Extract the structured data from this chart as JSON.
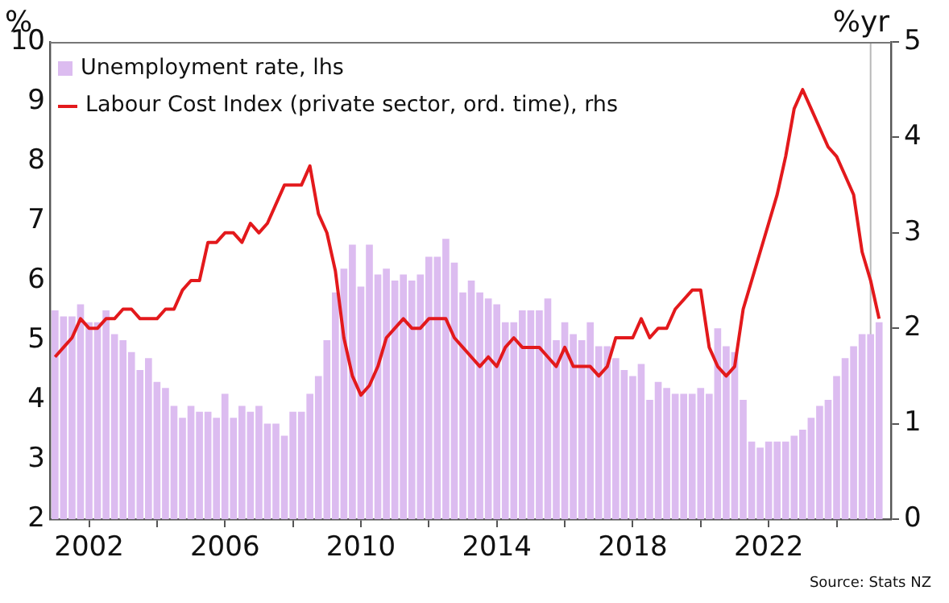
{
  "chart_data": {
    "type": "bar",
    "ylabel": "%",
    "y2label": "%yr",
    "annotations": [
      "Source: Stats NZ"
    ],
    "legend": "top left",
    "grid": false,
    "marker": "none",
    "x": [
      2001,
      2001.25,
      2001.5,
      2001.75,
      2002,
      2002.25,
      2002.5,
      2002.75,
      2003,
      2003.25,
      2003.5,
      2003.75,
      2004,
      2004.25,
      2004.5,
      2004.75,
      2005,
      2005.25,
      2005.5,
      2005.75,
      2006,
      2006.25,
      2006.5,
      2006.75,
      2007,
      2007.25,
      2007.5,
      2007.75,
      2008,
      2008.25,
      2008.5,
      2008.75,
      2009,
      2009.25,
      2009.5,
      2009.75,
      2010,
      2010.25,
      2010.5,
      2010.75,
      2011,
      2011.25,
      2011.5,
      2011.75,
      2012,
      2012.25,
      2012.5,
      2012.75,
      2013,
      2013.25,
      2013.5,
      2013.75,
      2014,
      2014.25,
      2014.5,
      2014.75,
      2015,
      2015.25,
      2015.5,
      2015.75,
      2016,
      2016.25,
      2016.5,
      2016.75,
      2017,
      2017.25,
      2017.5,
      2017.75,
      2018,
      2018.25,
      2018.5,
      2018.75,
      2019,
      2019.25,
      2019.5,
      2019.75,
      2020,
      2020.25,
      2020.5,
      2020.75,
      2021,
      2021.25,
      2021.5,
      2021.75,
      2022,
      2022.25,
      2022.5,
      2022.75,
      2023,
      2023.25,
      2023.5,
      2023.75,
      2024,
      2024.25,
      2024.5,
      2024.75,
      2025,
      2025.25
    ],
    "xlim": [
      2000.85,
      2025.6
    ],
    "xticks": [
      2002,
      {
        "value": 2004,
        "label": null
      },
      2006,
      {
        "value": 2008,
        "label": null
      },
      2010,
      {
        "value": 2012,
        "label": null
      },
      2014,
      {
        "value": 2016,
        "label": null
      },
      2018,
      {
        "value": 2020,
        "label": null
      },
      2022,
      {
        "value": 2024,
        "label": null
      }
    ],
    "ylim": [
      2,
      10
    ],
    "yticks": [
      2,
      3,
      4,
      5,
      6,
      7,
      8,
      9,
      10
    ],
    "y2lim": [
      0,
      5
    ],
    "y2ticks": [
      0,
      1,
      2,
      3,
      4,
      5
    ],
    "ref_lines": [
      {
        "axis": "x",
        "value": 2025,
        "color": "#b8b8b8"
      }
    ],
    "series": [
      {
        "name": "Unemployment rate, lhs",
        "color": "#dcbcf0",
        "values": [
          5.5,
          5.4,
          5.4,
          5.6,
          5.3,
          5.3,
          5.5,
          5.1,
          5.0,
          4.8,
          4.5,
          4.7,
          4.3,
          4.2,
          3.9,
          3.7,
          3.9,
          3.8,
          3.8,
          3.7,
          4.1,
          3.7,
          3.9,
          3.8,
          3.9,
          3.6,
          3.6,
          3.4,
          3.8,
          3.8,
          4.1,
          4.4,
          5.0,
          5.8,
          6.2,
          6.6,
          5.9,
          6.6,
          6.1,
          6.2,
          6.0,
          6.1,
          6.0,
          6.1,
          6.4,
          6.4,
          6.7,
          6.3,
          5.8,
          6.0,
          5.8,
          5.7,
          5.6,
          5.3,
          5.3,
          5.5,
          5.5,
          5.5,
          5.7,
          5.0,
          5.3,
          5.1,
          5.0,
          5.3,
          4.9,
          4.9,
          4.7,
          4.5,
          4.4,
          4.6,
          4.0,
          4.3,
          4.2,
          4.1,
          4.1,
          4.1,
          4.2,
          4.1,
          5.2,
          4.9,
          4.8,
          4.0,
          3.3,
          3.2,
          3.3,
          3.3,
          3.3,
          3.4,
          3.5,
          3.7,
          3.9,
          4.0,
          4.4,
          4.7,
          4.9,
          5.1,
          5.1,
          5.3
        ]
      },
      {
        "name": "Labour Cost Index (private sector, ord. time), rhs",
        "type": "line",
        "axis": "y2",
        "color": "#e3191c",
        "x": [
          2001,
          2001.25,
          2001.5,
          2001.75,
          2002,
          2002.25,
          2002.5,
          2002.75,
          2003,
          2003.25,
          2003.5,
          2004,
          2004.25,
          2004.5,
          2004.75,
          2005,
          2005.25,
          2005.5,
          2005.75,
          2006,
          2006.25,
          2006.5,
          2006.75,
          2007,
          2007.25,
          2007.75,
          2008.25,
          2008.5,
          2008.75,
          2009,
          2009.25,
          2009.5,
          2009.75,
          2010,
          2010.25,
          2010.5,
          2010.75,
          2011,
          2011.25,
          2011.5,
          2011.75,
          2012,
          2012.5,
          2012.75,
          2013,
          2013.25,
          2013.5,
          2013.75,
          2014,
          2014.25,
          2014.5,
          2014.75,
          2015.25,
          2015.5,
          2015.75,
          2016,
          2016.25,
          2016.75,
          2017,
          2017.25,
          2017.5,
          2018,
          2018.25,
          2018.5,
          2018.75,
          2019,
          2019.25,
          2019.75,
          2020,
          2020.25,
          2020.5,
          2020.75,
          2021,
          2021.25,
          2021.5,
          2021.75,
          2022,
          2022.25,
          2022.5,
          2022.75,
          2023,
          2023.25,
          2023.5,
          2023.75,
          2024,
          2024.25,
          2024.5,
          2024.75,
          2025,
          2025.25
        ],
        "values": [
          1.7,
          1.8,
          1.9,
          2.1,
          2.0,
          2.0,
          2.1,
          2.1,
          2.2,
          2.2,
          2.1,
          2.1,
          2.2,
          2.2,
          2.4,
          2.5,
          2.5,
          2.9,
          2.9,
          3.0,
          3.0,
          2.9,
          3.1,
          3.0,
          3.1,
          3.5,
          3.5,
          3.7,
          3.2,
          3.0,
          2.6,
          1.9,
          1.5,
          1.3,
          1.4,
          1.6,
          1.9,
          2.0,
          2.1,
          2.0,
          2.0,
          2.1,
          2.1,
          1.9,
          1.8,
          1.7,
          1.6,
          1.7,
          1.6,
          1.8,
          1.9,
          1.8,
          1.8,
          1.7,
          1.6,
          1.8,
          1.6,
          1.6,
          1.5,
          1.6,
          1.9,
          1.9,
          2.1,
          1.9,
          2.0,
          2.0,
          2.2,
          2.4,
          2.4,
          1.8,
          1.6,
          1.5,
          1.6,
          2.2,
          2.5,
          2.8,
          3.1,
          3.4,
          3.8,
          4.3,
          4.5,
          4.3,
          4.1,
          3.9,
          3.8,
          3.6,
          3.4,
          2.8,
          2.5,
          2.1
        ]
      }
    ]
  }
}
